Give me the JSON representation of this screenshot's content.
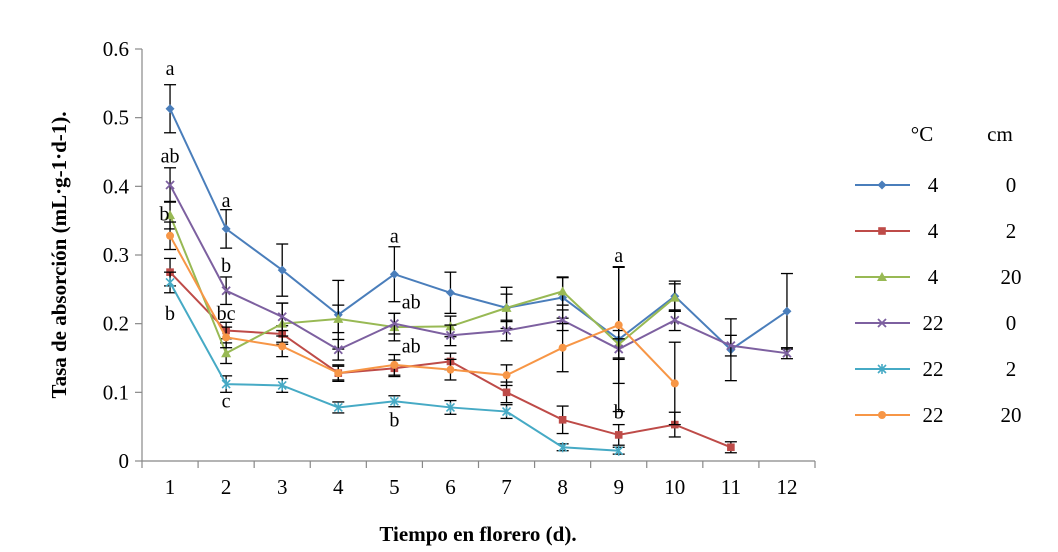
{
  "chart_data": {
    "type": "line",
    "title": "",
    "xlabel": "Tiempo en florero (d).",
    "ylabel": "Tasa de absorción (mL·g-1·d-1).",
    "x": [
      1,
      2,
      3,
      4,
      5,
      6,
      7,
      8,
      9,
      10,
      11,
      12
    ],
    "x_ticks": [
      "1",
      "2",
      "3",
      "4",
      "5",
      "6",
      "7",
      "8",
      "9",
      "10",
      "11",
      "12"
    ],
    "ylim": [
      0,
      0.6
    ],
    "y_ticks": [
      "0",
      "0.1",
      "0.2",
      "0.3",
      "0.4",
      "0.5",
      "0.6"
    ],
    "grid": false,
    "legend": {
      "placement": "right",
      "headers": [
        "°C",
        "cm"
      ]
    },
    "series": [
      {
        "temp": "4",
        "depth": "0",
        "color": "#4a7ebb",
        "marker": "diamond",
        "x": [
          1,
          2,
          3,
          4,
          5,
          6,
          7,
          8,
          9,
          10,
          11,
          12
        ],
        "values": [
          0.513,
          0.338,
          0.278,
          0.213,
          0.272,
          0.245,
          0.223,
          0.238,
          0.177,
          0.24,
          0.162,
          0.218
        ],
        "err": [
          0.035,
          0.028,
          0.038,
          0.05,
          0.04,
          0.03,
          0.03,
          0.03,
          0.105,
          0.022,
          0.045,
          0.055
        ]
      },
      {
        "temp": "4",
        "depth": "2",
        "color": "#be4b48",
        "marker": "square",
        "x": [
          1,
          2,
          3,
          4,
          5,
          6,
          7,
          8,
          9,
          10,
          11
        ],
        "values": [
          0.275,
          0.19,
          0.185,
          0.128,
          0.135,
          0.145,
          0.1,
          0.06,
          0.038,
          0.053,
          0.02
        ],
        "err": [
          0.02,
          0.012,
          0.012,
          0.01,
          0.012,
          0.012,
          0.015,
          0.02,
          0.015,
          0.018,
          0.008
        ]
      },
      {
        "temp": "4",
        "depth": "20",
        "color": "#98b954",
        "marker": "triangle",
        "x": [
          1,
          2,
          3,
          4,
          5,
          6,
          7,
          8,
          9,
          10
        ],
        "values": [
          0.358,
          0.157,
          0.2,
          0.207,
          0.195,
          0.196,
          0.223,
          0.247,
          0.17,
          0.238
        ],
        "err": [
          0.02,
          0.015,
          0.03,
          0.02,
          0.02,
          0.015,
          0.02,
          0.02,
          0.02,
          0.02
        ]
      },
      {
        "temp": "22",
        "depth": "0",
        "color": "#7d60a0",
        "marker": "x",
        "x": [
          1,
          2,
          3,
          4,
          5,
          6,
          7,
          8,
          9,
          10,
          11,
          12
        ],
        "values": [
          0.402,
          0.248,
          0.21,
          0.162,
          0.2,
          0.183,
          0.19,
          0.205,
          0.163,
          0.205,
          0.168,
          0.157
        ],
        "err": [
          0.025,
          0.02,
          0.02,
          0.015,
          0.015,
          0.015,
          0.015,
          0.015,
          0.015,
          0.015,
          0.015,
          0.008
        ]
      },
      {
        "temp": "22",
        "depth": "2",
        "color": "#46aac5",
        "marker": "star",
        "x": [
          1,
          2,
          3,
          4,
          5,
          6,
          7,
          8,
          9
        ],
        "values": [
          0.26,
          0.112,
          0.11,
          0.078,
          0.087,
          0.078,
          0.072,
          0.02,
          0.015
        ],
        "err": [
          0.015,
          0.012,
          0.01,
          0.008,
          0.008,
          0.01,
          0.01,
          0.005,
          0.005
        ]
      },
      {
        "temp": "22",
        "depth": "20",
        "color": "#f79646",
        "marker": "circle",
        "x": [
          1,
          2,
          3,
          4,
          5,
          6,
          7,
          8,
          9,
          10
        ],
        "values": [
          0.328,
          0.18,
          0.167,
          0.128,
          0.14,
          0.133,
          0.125,
          0.165,
          0.198,
          0.113
        ],
        "err": [
          0.02,
          0.015,
          0.015,
          0.012,
          0.015,
          0.015,
          0.015,
          0.035,
          0.085,
          0.06
        ]
      }
    ],
    "annotations": [
      {
        "text": "a",
        "x": 1,
        "y": 0.562
      },
      {
        "text": "ab",
        "x": 1,
        "y": 0.435
      },
      {
        "text": "b",
        "x": 0.9,
        "y": 0.35
      },
      {
        "text": "b",
        "x": 1,
        "y": 0.205
      },
      {
        "text": "a",
        "x": 2,
        "y": 0.37
      },
      {
        "text": "b",
        "x": 2,
        "y": 0.275
      },
      {
        "text": "bc",
        "x": 2,
        "y": 0.205
      },
      {
        "text": "c",
        "x": 2,
        "y": 0.078
      },
      {
        "text": "a",
        "x": 5,
        "y": 0.318
      },
      {
        "text": "ab",
        "x": 5.3,
        "y": 0.222
      },
      {
        "text": "ab",
        "x": 5.3,
        "y": 0.158
      },
      {
        "text": "b",
        "x": 5,
        "y": 0.05
      },
      {
        "text": "a",
        "x": 9,
        "y": 0.29
      },
      {
        "text": "b",
        "x": 9,
        "y": 0.062
      }
    ]
  }
}
